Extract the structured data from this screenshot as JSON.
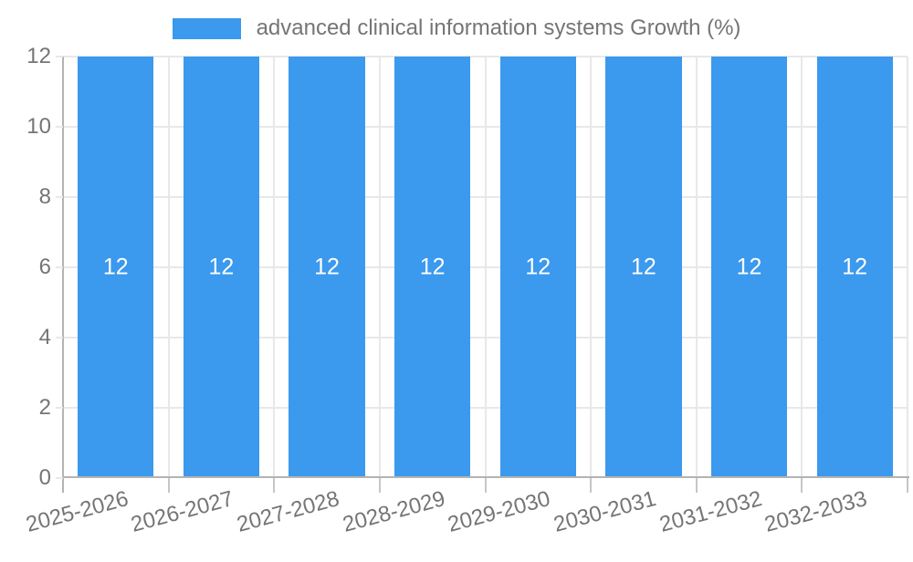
{
  "legend": {
    "label": "advanced clinical information systems Growth (%)"
  },
  "colors": {
    "bar": "#3B99EE",
    "grid_line": "#E8E8E8",
    "axis_line": "#B3B3B3",
    "tick_mark": "#C6C6C6",
    "tick_text": "#757575",
    "bar_label": "#FFFFFF",
    "background": "#FFFFFF"
  },
  "chart_data": {
    "type": "bar",
    "title": "advanced clinical information systems Growth (%)",
    "categories": [
      "2025-2026",
      "2026-2027",
      "2027-2028",
      "2028-2029",
      "2029-2030",
      "2030-2031",
      "2031-2032",
      "2032-2033"
    ],
    "series": [
      {
        "name": "advanced clinical information systems Growth (%)",
        "values": [
          12,
          12,
          12,
          12,
          12,
          12,
          12,
          12
        ]
      }
    ],
    "bar_value_labels": [
      "12",
      "12",
      "12",
      "12",
      "12",
      "12",
      "12",
      "12"
    ],
    "xlabel": "",
    "ylabel": "",
    "ylim": [
      0,
      12
    ],
    "yticks": [
      0,
      2,
      4,
      6,
      8,
      10,
      12
    ],
    "grid": true,
    "legend_position": "top",
    "x_tick_label_rotation_deg": -15
  }
}
